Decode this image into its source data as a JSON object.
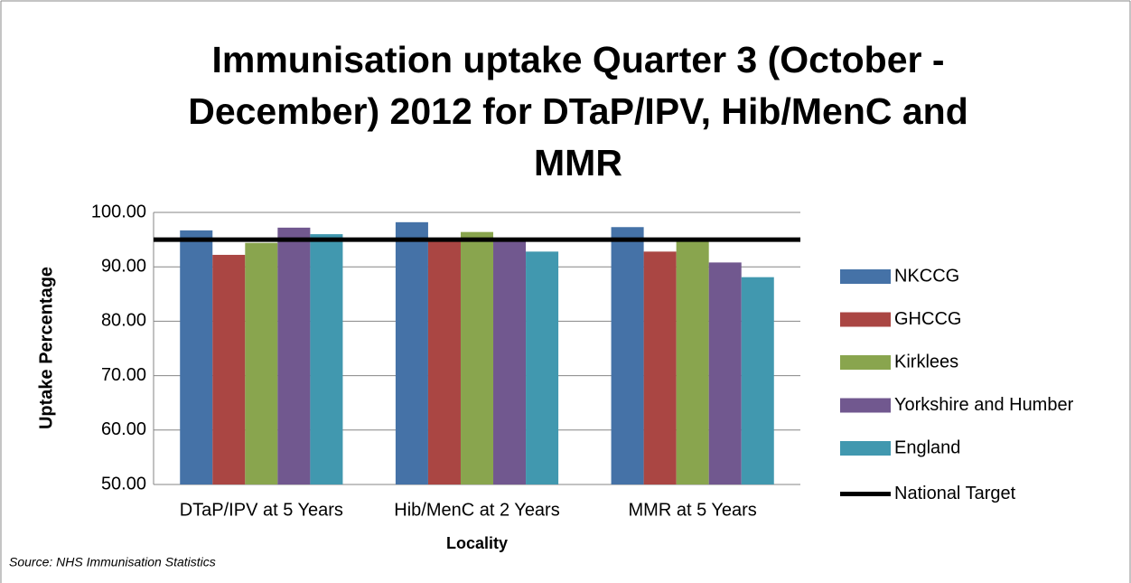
{
  "chart_data": {
    "type": "bar",
    "title": "Immunisation uptake Quarter 3 (October - December) 2012 for DTaP/IPV, Hib/MenC and MMR",
    "x_label": "Locality",
    "y_label": "Uptake Percentage",
    "source": "Source:  NHS Immunisation Statistics",
    "categories": [
      "DTaP/IPV at 5 Years",
      "Hib/MenC at  2 Years",
      "MMR at 5 Years"
    ],
    "series": [
      {
        "name": "NKCCG",
        "color": "#4572a7",
        "values": [
          96.7,
          98.2,
          97.3
        ]
      },
      {
        "name": "GHCCG",
        "color": "#aa4643",
        "values": [
          92.2,
          95.0,
          92.8
        ]
      },
      {
        "name": "Kirklees",
        "color": "#89a54e",
        "values": [
          94.4,
          96.4,
          95.0
        ]
      },
      {
        "name": "Yorkshire and Humber",
        "color": "#71588f",
        "values": [
          97.2,
          95.1,
          90.8
        ]
      },
      {
        "name": "England",
        "color": "#4198af",
        "values": [
          96.0,
          92.8,
          88.1
        ]
      }
    ],
    "target": {
      "name": "National Target",
      "value": 95,
      "color": "#000000"
    },
    "ylim": [
      50,
      100
    ],
    "yticks": [
      {
        "value": 50,
        "label": "50.00"
      },
      {
        "value": 60,
        "label": "60.00"
      },
      {
        "value": 70,
        "label": "70.00"
      },
      {
        "value": 80,
        "label": "80.00"
      },
      {
        "value": 90,
        "label": "90.00"
      },
      {
        "value": 100,
        "label": "100.00"
      }
    ],
    "grid": true,
    "legend": "right"
  }
}
